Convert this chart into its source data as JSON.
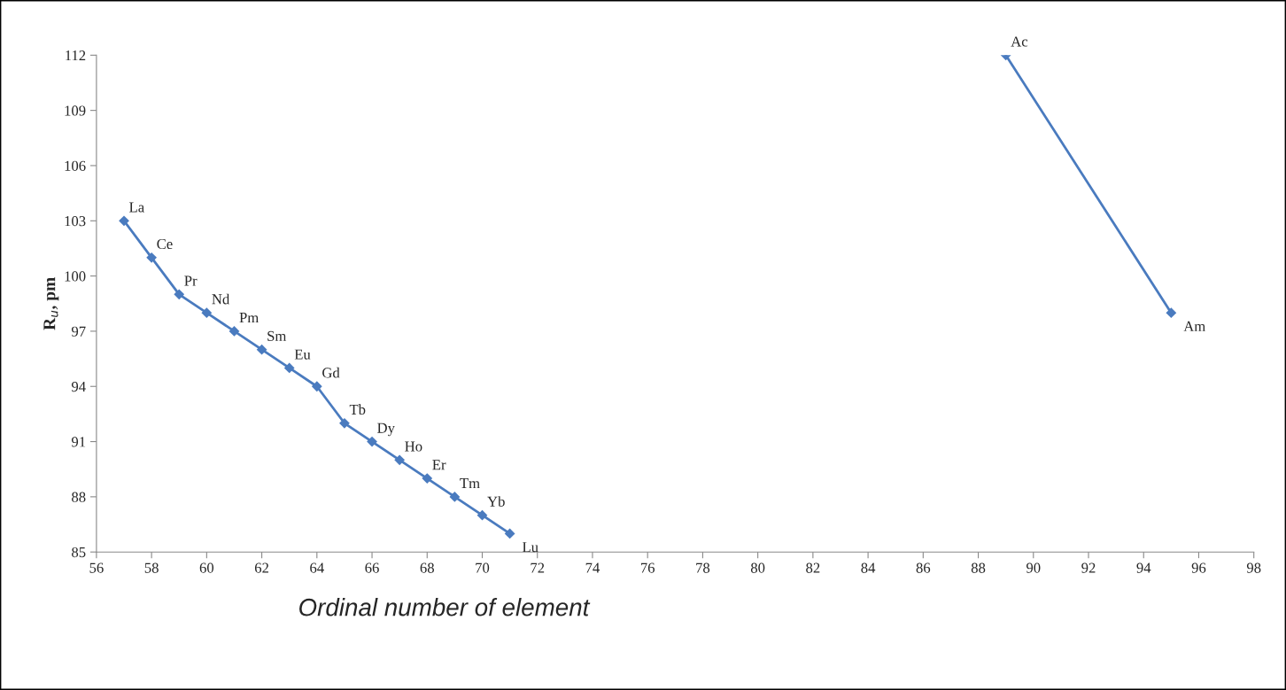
{
  "chart_data": {
    "type": "line",
    "xlabel": "Ordinal number of element",
    "ylabel": "R$_{u}$, pm",
    "series": [
      {
        "color": "#4a7bbf",
        "x": [
          57,
          58,
          59,
          60,
          61,
          62,
          63,
          64,
          65,
          66,
          67,
          68,
          69,
          70,
          71
        ],
        "values": [
          103,
          101,
          99,
          98,
          97,
          96,
          95,
          94,
          92,
          91,
          90,
          89,
          88,
          87,
          86
        ]
      },
      {
        "color": "#4a7bbf",
        "x": [
          89,
          95
        ],
        "values": [
          112,
          98
        ]
      }
    ],
    "annotations": [
      {
        "text": "La",
        "x": 57,
        "y": 103
      },
      {
        "text": "Ce",
        "x": 58,
        "y": 101
      },
      {
        "text": "Pr",
        "x": 59,
        "y": 99
      },
      {
        "text": "Nd",
        "x": 60,
        "y": 98
      },
      {
        "text": "Pm",
        "x": 61,
        "y": 97
      },
      {
        "text": "Sm",
        "x": 62,
        "y": 96
      },
      {
        "text": "Eu",
        "x": 63,
        "y": 95
      },
      {
        "text": "Gd",
        "x": 64,
        "y": 94
      },
      {
        "text": "Tb",
        "x": 65,
        "y": 92
      },
      {
        "text": "Dy",
        "x": 66,
        "y": 91
      },
      {
        "text": "Ho",
        "x": 67,
        "y": 90
      },
      {
        "text": "Er",
        "x": 68,
        "y": 89
      },
      {
        "text": "Tm",
        "x": 69,
        "y": 88
      },
      {
        "text": "Yb",
        "x": 70,
        "y": 87
      },
      {
        "text": "Lu",
        "x": 71,
        "y": 86
      },
      {
        "text": "Ac",
        "x": 89,
        "y": 112
      },
      {
        "text": "Am",
        "x": 95,
        "y": 98
      }
    ],
    "xlim": [
      56,
      98
    ],
    "xticks": [
      56,
      58,
      60,
      62,
      64,
      66,
      68,
      70,
      72,
      74,
      76,
      78,
      80,
      82,
      84,
      86,
      88,
      90,
      92,
      94,
      96,
      98
    ],
    "ylim": [
      85,
      112
    ],
    "yticks": [
      85,
      88,
      91,
      94,
      97,
      100,
      103,
      106,
      109,
      112
    ],
    "grid": false,
    "marker": "diamond",
    "line_style": "solid"
  }
}
